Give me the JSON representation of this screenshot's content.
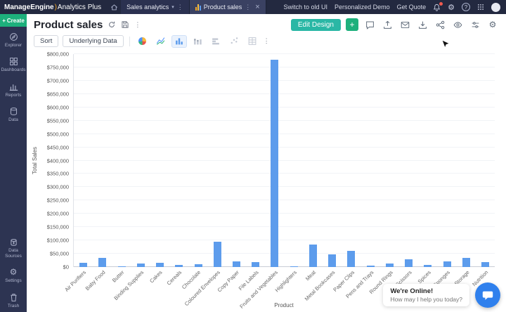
{
  "topbar": {
    "logo_manageengine": "ManageEngine",
    "logo_separator": ")",
    "logo_product": "Analytics Plus",
    "workspace_tab": "Sales analytics",
    "report_tab": "Product sales",
    "links": {
      "switch_old_ui": "Switch to old UI",
      "personalized_demo": "Personalized Demo",
      "get_quote": "Get Quote"
    }
  },
  "sidebar": {
    "create_label": "Create",
    "items": [
      {
        "label": "Explorer"
      },
      {
        "label": "Dashboards"
      },
      {
        "label": "Reports"
      },
      {
        "label": "Data"
      }
    ],
    "bottom_items": [
      {
        "label": "Data Sources"
      },
      {
        "label": "Settings"
      },
      {
        "label": "Trash"
      }
    ]
  },
  "report_header": {
    "title": "Product sales",
    "edit_design_label": "Edit Design",
    "add_label": "+"
  },
  "toolbar": {
    "sort_label": "Sort",
    "underlying_data_label": "Underlying Data"
  },
  "chat_widget": {
    "status": "We're Online!",
    "message": "How may I help you today?"
  },
  "icons": {
    "kebab": "⋮",
    "close": "×",
    "caret_down": "▾",
    "help": "?",
    "gear": "⚙",
    "plus": "+"
  },
  "colors": {
    "accent_green": "#1db07c",
    "teal": "#2ab7a5",
    "bar_blue": "#5d9cec",
    "chat_blue": "#2f80ed",
    "notification_red": "#f05a4f"
  },
  "chart_data": {
    "type": "bar",
    "title": "Product sales",
    "xlabel": "Product",
    "ylabel": "Total Sales",
    "ylim": [
      0,
      800000
    ],
    "ytick_step": 50000,
    "ytick_format": "$#,###",
    "grid": true,
    "legend": false,
    "bar_color": "#5d9cec",
    "categories": [
      "Air Purifiers",
      "Baby Food",
      "Butter",
      "Binding Supplies",
      "Cakes",
      "Cereals",
      "Chocolate",
      "Coloured Envelopes",
      "Copy Paper",
      "File Labels",
      "Fruits and Vegetables",
      "Highlighters",
      "Meat",
      "Metal Bookcases",
      "Paper Clips",
      "Pens and Trays",
      "Round Rings",
      "Scissors",
      "Spices",
      "Sponges",
      "Storage",
      "Nutrition"
    ],
    "values": [
      15000,
      35000,
      4000,
      13000,
      15000,
      9000,
      11000,
      95000,
      21000,
      18000,
      780000,
      3000,
      85000,
      48000,
      60000,
      5000,
      12000,
      30000,
      8000,
      22000,
      35000,
      18000
    ]
  }
}
